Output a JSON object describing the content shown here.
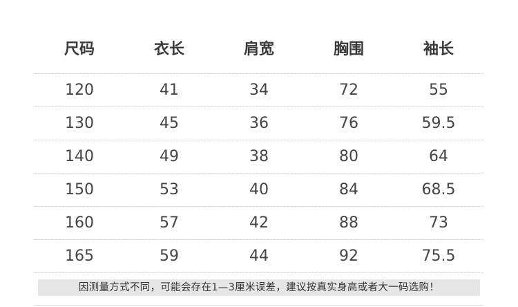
{
  "table": {
    "headers": [
      "尺码",
      "衣长",
      "肩宽",
      "胸围",
      "袖长"
    ],
    "rows": [
      [
        "120",
        "41",
        "34",
        "72",
        "55"
      ],
      [
        "130",
        "45",
        "36",
        "76",
        "59.5"
      ],
      [
        "140",
        "49",
        "38",
        "80",
        "64"
      ],
      [
        "150",
        "53",
        "40",
        "84",
        "68.5"
      ],
      [
        "160",
        "57",
        "42",
        "88",
        "73"
      ],
      [
        "165",
        "59",
        "44",
        "92",
        "75.5"
      ]
    ]
  },
  "note": "因测量方式不同，可能会存在1—3厘米误差，建议按真实身高或者大一码选购！"
}
